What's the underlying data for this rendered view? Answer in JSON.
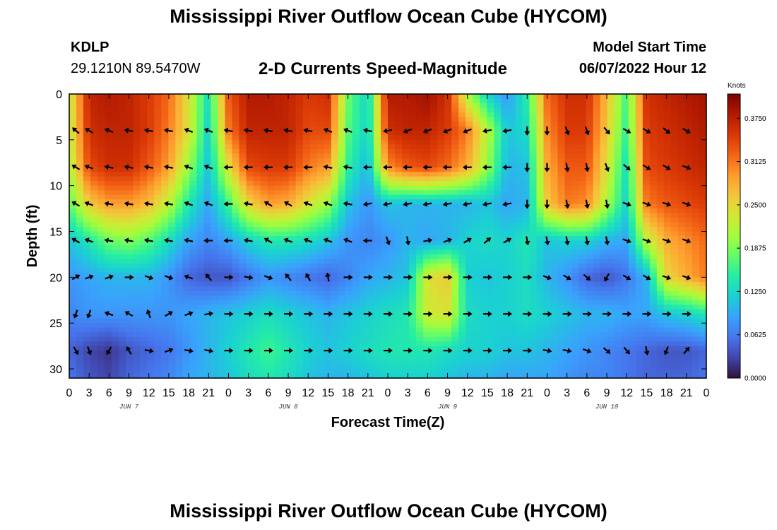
{
  "header": {
    "title": "Mississippi River Outflow Ocean Cube (HYCOM)",
    "station": "KDLP",
    "coordinates": "29.1210N  89.5470W",
    "subtitle": "2-D Currents Speed-Magnitude",
    "model_start_label": "Model Start Time",
    "model_start_value": "06/07/2022 Hour 12"
  },
  "footer": {
    "title": "Mississippi River Outflow Ocean Cube (HYCOM)"
  },
  "colors": {
    "colormap": [
      "#30123b",
      "#4145ab",
      "#4675ed",
      "#39a2fc",
      "#1bcfd4",
      "#24eca6",
      "#61fc6c",
      "#a4fc3b",
      "#d1e834",
      "#f3c63a",
      "#fe9b2d",
      "#f36315",
      "#d93806",
      "#b11901",
      "#7a0402"
    ],
    "arrow": "#000000"
  },
  "chart_data": {
    "type": "heatmap",
    "xlabel": "Forecast Time(Z)",
    "ylabel": "Depth (ft)",
    "x_ticks": [
      "0",
      "3",
      "6",
      "9",
      "12",
      "15",
      "18",
      "21",
      "0",
      "3",
      "6",
      "9",
      "12",
      "15",
      "18",
      "21",
      "0",
      "3",
      "6",
      "9",
      "12",
      "15",
      "18",
      "21",
      "0",
      "3",
      "6",
      "9",
      "12",
      "15",
      "18",
      "21",
      "0"
    ],
    "day_labels": [
      "JUN 7",
      "JUN 8",
      "JUN 9",
      "JUN 10"
    ],
    "y_ticks": [
      "0",
      "5",
      "10",
      "15",
      "20",
      "25",
      "30"
    ],
    "ylim": [
      0,
      31
    ],
    "xlim_hours": [
      0,
      96
    ],
    "colorbar": {
      "title": "Knots",
      "ticks": [
        "0.0000",
        "0.0625",
        "0.1250",
        "0.1875",
        "0.2500",
        "0.3125",
        "0.3750"
      ],
      "range": [
        0,
        0.41
      ]
    },
    "depths": [
      0,
      4,
      8,
      12,
      16,
      20,
      24,
      28,
      31
    ],
    "hours": [
      0,
      3,
      6,
      9,
      12,
      15,
      18,
      21,
      24,
      27,
      30,
      33,
      36,
      39,
      42,
      45,
      48,
      51,
      54,
      57,
      60,
      63,
      66,
      69,
      72,
      75,
      78,
      81,
      84,
      87,
      90,
      93,
      96
    ],
    "speed_knots": [
      [
        0.22,
        0.37,
        0.38,
        0.37,
        0.35,
        0.32,
        0.24,
        0.13,
        0.33,
        0.38,
        0.38,
        0.37,
        0.35,
        0.36,
        0.18,
        0.12,
        0.38,
        0.38,
        0.39,
        0.36,
        0.21,
        0.12,
        0.08,
        0.15,
        0.32,
        0.36,
        0.36,
        0.27,
        0.16,
        0.36,
        0.37,
        0.38,
        0.39
      ],
      [
        0.22,
        0.36,
        0.37,
        0.37,
        0.35,
        0.31,
        0.24,
        0.12,
        0.31,
        0.37,
        0.37,
        0.37,
        0.34,
        0.34,
        0.17,
        0.12,
        0.36,
        0.37,
        0.37,
        0.35,
        0.31,
        0.22,
        0.11,
        0.13,
        0.3,
        0.35,
        0.35,
        0.26,
        0.15,
        0.35,
        0.36,
        0.37,
        0.38
      ],
      [
        0.21,
        0.34,
        0.36,
        0.36,
        0.33,
        0.29,
        0.2,
        0.11,
        0.24,
        0.34,
        0.35,
        0.35,
        0.31,
        0.29,
        0.15,
        0.1,
        0.3,
        0.33,
        0.34,
        0.32,
        0.28,
        0.2,
        0.1,
        0.11,
        0.28,
        0.33,
        0.33,
        0.24,
        0.13,
        0.34,
        0.35,
        0.36,
        0.37
      ],
      [
        0.17,
        0.26,
        0.29,
        0.29,
        0.27,
        0.22,
        0.14,
        0.09,
        0.16,
        0.25,
        0.29,
        0.28,
        0.24,
        0.2,
        0.11,
        0.08,
        0.11,
        0.1,
        0.1,
        0.1,
        0.1,
        0.11,
        0.09,
        0.1,
        0.26,
        0.31,
        0.3,
        0.21,
        0.12,
        0.31,
        0.33,
        0.34,
        0.35
      ],
      [
        0.11,
        0.14,
        0.18,
        0.19,
        0.17,
        0.13,
        0.09,
        0.07,
        0.09,
        0.12,
        0.14,
        0.14,
        0.13,
        0.11,
        0.08,
        0.07,
        0.08,
        0.1,
        0.09,
        0.1,
        0.12,
        0.13,
        0.12,
        0.14,
        0.11,
        0.12,
        0.12,
        0.1,
        0.09,
        0.22,
        0.28,
        0.3,
        0.32
      ],
      [
        0.08,
        0.09,
        0.1,
        0.1,
        0.1,
        0.08,
        0.05,
        0.04,
        0.04,
        0.06,
        0.08,
        0.07,
        0.06,
        0.05,
        0.07,
        0.09,
        0.1,
        0.11,
        0.24,
        0.26,
        0.12,
        0.11,
        0.12,
        0.13,
        0.1,
        0.08,
        0.05,
        0.04,
        0.06,
        0.1,
        0.25,
        0.28,
        0.31
      ],
      [
        0.07,
        0.08,
        0.08,
        0.08,
        0.08,
        0.08,
        0.09,
        0.1,
        0.11,
        0.12,
        0.13,
        0.12,
        0.11,
        0.1,
        0.11,
        0.12,
        0.13,
        0.14,
        0.23,
        0.24,
        0.13,
        0.12,
        0.12,
        0.13,
        0.12,
        0.11,
        0.1,
        0.1,
        0.09,
        0.09,
        0.11,
        0.12,
        0.14
      ],
      [
        0.05,
        0.03,
        0.02,
        0.04,
        0.05,
        0.06,
        0.08,
        0.1,
        0.12,
        0.14,
        0.16,
        0.14,
        0.12,
        0.11,
        0.12,
        0.13,
        0.14,
        0.14,
        0.14,
        0.13,
        0.12,
        0.12,
        0.11,
        0.11,
        0.1,
        0.09,
        0.08,
        0.07,
        0.06,
        0.05,
        0.04,
        0.04,
        0.05
      ],
      [
        0.06,
        0.04,
        0.03,
        0.05,
        0.06,
        0.07,
        0.09,
        0.1,
        0.11,
        0.13,
        0.14,
        0.13,
        0.11,
        0.1,
        0.1,
        0.11,
        0.12,
        0.12,
        0.12,
        0.11,
        0.1,
        0.1,
        0.09,
        0.09,
        0.09,
        0.08,
        0.07,
        0.07,
        0.06,
        0.05,
        0.05,
        0.05,
        0.06
      ]
    ],
    "vectors": {
      "depths": [
        4,
        8,
        12,
        16,
        20,
        24,
        28
      ],
      "hours": [
        1,
        3,
        6,
        9,
        12,
        15,
        18,
        21,
        24,
        27,
        30,
        33,
        36,
        39,
        42,
        45,
        48,
        51,
        54,
        57,
        60,
        63,
        66,
        69,
        72,
        75,
        78,
        81,
        84,
        87,
        90,
        93
      ],
      "direction_deg": [
        [
          310,
          300,
          290,
          280,
          280,
          280,
          290,
          290,
          280,
          280,
          280,
          280,
          280,
          290,
          290,
          280,
          260,
          250,
          250,
          250,
          250,
          260,
          260,
          180,
          180,
          160,
          160,
          140,
          120,
          120,
          130,
          120
        ],
        [
          300,
          290,
          280,
          280,
          280,
          280,
          290,
          290,
          270,
          270,
          270,
          270,
          270,
          280,
          280,
          270,
          270,
          270,
          270,
          270,
          270,
          270,
          270,
          180,
          180,
          170,
          170,
          160,
          130,
          120,
          120,
          110
        ],
        [
          300,
          290,
          280,
          280,
          280,
          280,
          290,
          290,
          270,
          280,
          300,
          300,
          290,
          290,
          280,
          260,
          260,
          260,
          260,
          260,
          260,
          260,
          260,
          180,
          180,
          170,
          170,
          170,
          110,
          110,
          110,
          110
        ],
        [
          300,
          290,
          280,
          280,
          280,
          280,
          280,
          270,
          270,
          280,
          300,
          290,
          290,
          290,
          290,
          270,
          160,
          170,
          80,
          70,
          60,
          50,
          60,
          170,
          170,
          170,
          170,
          170,
          110,
          110,
          110,
          110
        ],
        [
          60,
          70,
          70,
          90,
          110,
          110,
          290,
          320,
          90,
          100,
          110,
          320,
          330,
          350,
          90,
          90,
          90,
          90,
          90,
          90,
          90,
          90,
          90,
          90,
          110,
          120,
          130,
          210,
          120,
          120,
          110,
          110
        ],
        [
          200,
          200,
          290,
          300,
          340,
          60,
          70,
          80,
          90,
          90,
          90,
          90,
          90,
          90,
          90,
          90,
          90,
          90,
          90,
          90,
          90,
          90,
          90,
          90,
          90,
          90,
          90,
          90,
          90,
          90,
          90,
          90
        ],
        [
          150,
          160,
          210,
          330,
          100,
          70,
          100,
          100,
          90,
          90,
          90,
          90,
          90,
          90,
          90,
          90,
          90,
          90,
          90,
          90,
          90,
          90,
          90,
          90,
          100,
          100,
          110,
          130,
          140,
          170,
          200,
          40
        ]
      ]
    }
  }
}
